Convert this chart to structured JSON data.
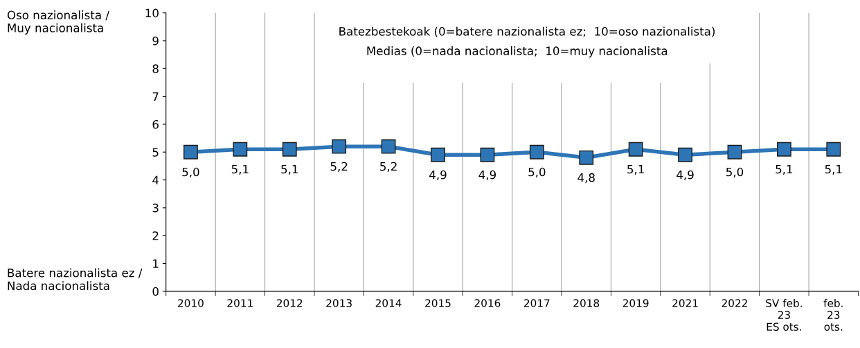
{
  "chart_data": {
    "type": "line",
    "title": "Batezbestekoak (0=batere nazionalista ez;  10=oso nazionalista)",
    "subtitle": "Medias (0=nada nacionalista;  10=muy nacionalista",
    "categories": [
      "2010",
      "2011",
      "2012",
      "2013",
      "2014",
      "2015",
      "2016",
      "2017",
      "2018",
      "2019",
      "2021",
      "2022",
      "SV feb.\n23\nES ots.",
      "feb.\n23\nots."
    ],
    "series": [
      {
        "color": "#2e75b6",
        "values": [
          5.0,
          5.1,
          5.1,
          5.2,
          5.2,
          4.9,
          4.9,
          5.0,
          4.8,
          5.1,
          4.9,
          5.0,
          5.1,
          5.1
        ],
        "value_labels": [
          "5,0",
          "5,1",
          "5,1",
          "5,2",
          "5,2",
          "4,9",
          "4,9",
          "5,0",
          "4,8",
          "5,1",
          "4,9",
          "5,0",
          "5,1",
          "5,1"
        ]
      }
    ],
    "ylim": [
      0,
      10
    ],
    "yticks": [
      0,
      1,
      2,
      3,
      4,
      5,
      6,
      7,
      8,
      9,
      10
    ],
    "annotations": [
      "Oso nazionalista /\nMuy nacionalista",
      "Batere nazionalista ez /\nNada nacionalista"
    ],
    "grid": "x",
    "marker": "square",
    "line_style": "solid",
    "legend": false
  }
}
